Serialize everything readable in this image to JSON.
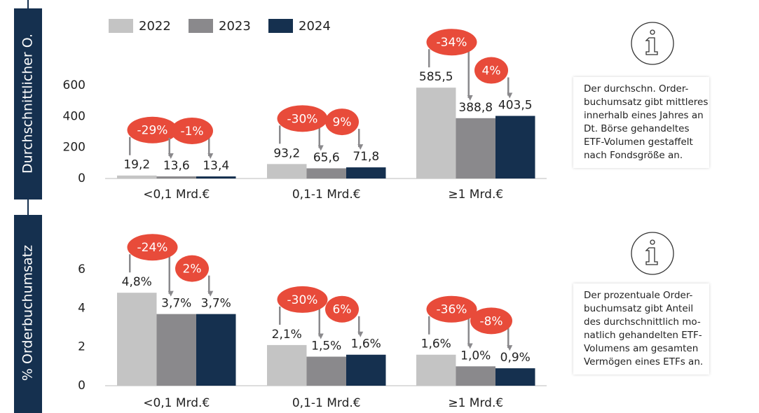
{
  "chart_data": [
    {
      "type": "bar",
      "y_label": "Durchschnittlicher O.",
      "categories": [
        "<0,1 Mrd.€",
        "0,1-1 Mrd.€",
        "≥1 Mrd.€"
      ],
      "series": [
        {
          "name": "2022",
          "color": "#c4c4c4",
          "values": [
            19.2,
            93.2,
            585.5
          ],
          "value_labels": [
            "19,2",
            "93,2",
            "585,5"
          ]
        },
        {
          "name": "2023",
          "color": "#8a898c",
          "values": [
            13.6,
            65.6,
            388.8
          ],
          "value_labels": [
            "13,6",
            "65,6",
            "388,8"
          ]
        },
        {
          "name": "2024",
          "color": "#15304f",
          "values": [
            13.4,
            71.8,
            403.5
          ],
          "value_labels": [
            "13,4",
            "71,8",
            "403,5"
          ]
        }
      ],
      "changes": [
        [
          "-29%",
          "-1%"
        ],
        [
          "-30%",
          "9%"
        ],
        [
          "-34%",
          "4%"
        ]
      ],
      "ylim": [
        0,
        600
      ],
      "yticks": [
        0,
        200,
        400,
        600
      ],
      "note": [
        "Der durchschn. Order-",
        "buchumsatz gibt mittleres",
        "innerhalb eines Jahres an",
        "Dt. Börse gehandeltes",
        "ETF-Volumen gestaffelt",
        "nach Fondsgröße an."
      ]
    },
    {
      "type": "bar",
      "y_label": "% Orderbuchumsatz",
      "categories": [
        "<0,1 Mrd.€",
        "0,1-1 Mrd.€",
        "≥1 Mrd.€"
      ],
      "series": [
        {
          "color": "#c4c4c4",
          "values": [
            4.8,
            2.1,
            1.6
          ],
          "value_labels": [
            "4,8%",
            "2,1%",
            "1,6%"
          ]
        },
        {
          "color": "#8a898c",
          "values": [
            3.7,
            1.5,
            1.0
          ],
          "value_labels": [
            "3,7%",
            "1,5%",
            "1,0%"
          ]
        },
        {
          "color": "#15304f",
          "values": [
            3.7,
            1.6,
            0.9
          ],
          "value_labels": [
            "3,7%",
            "1,6%",
            "0,9%"
          ]
        }
      ],
      "changes": [
        [
          "-24%",
          "2%"
        ],
        [
          "-30%",
          "6%"
        ],
        [
          "-36%",
          "-8%"
        ]
      ],
      "ylim": [
        0,
        6
      ],
      "yticks": [
        0,
        2,
        4,
        6
      ],
      "note": [
        "Der prozentuale Order-",
        "buchumsatz gibt Anteil",
        "des durchschnittlich mo-",
        "natlich gehandelten ETF-",
        "Volumens am gesamten",
        "Vermögen eines ETFs an."
      ]
    }
  ]
}
